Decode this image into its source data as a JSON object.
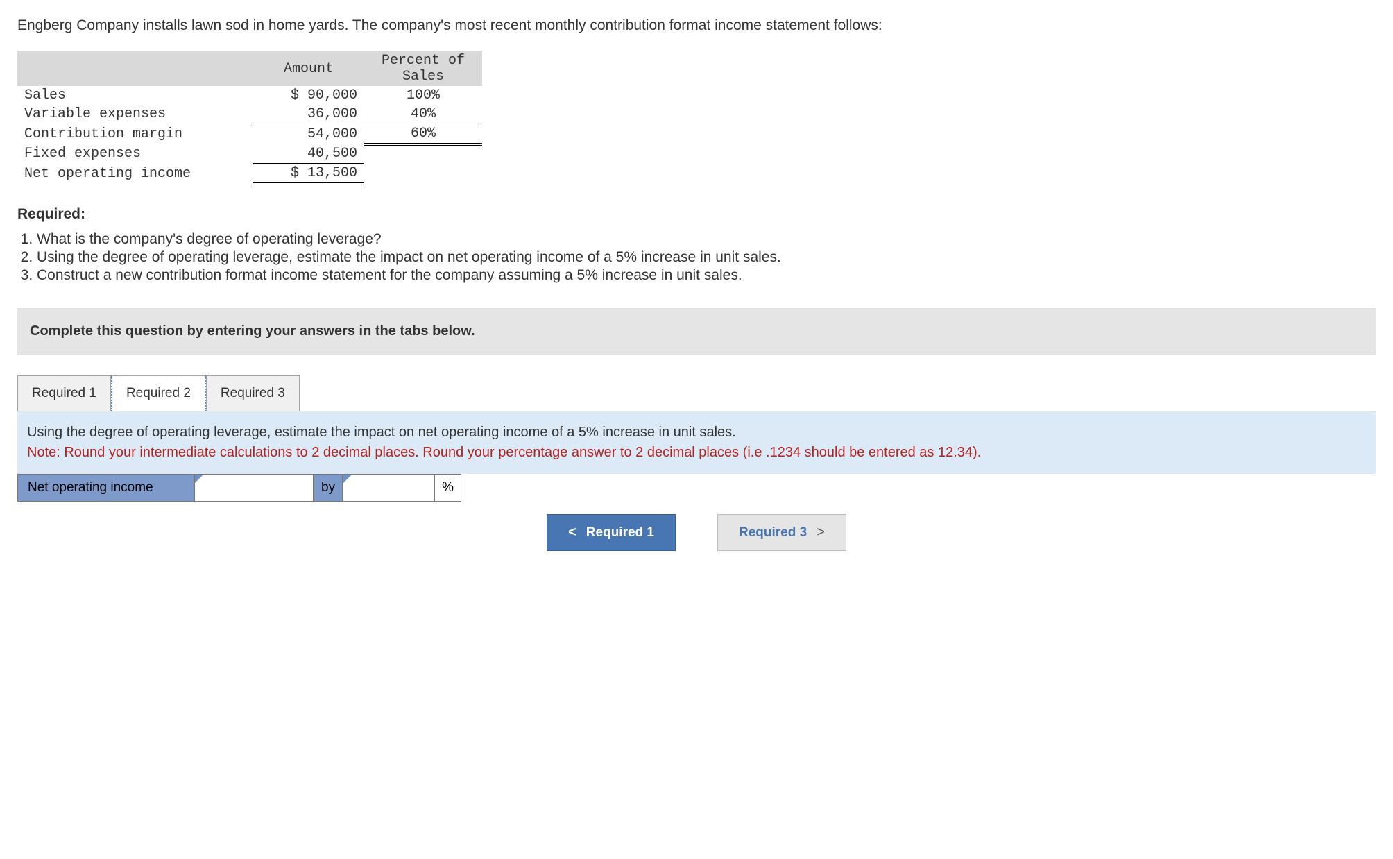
{
  "intro": "Engberg Company installs lawn sod in home yards. The company's most recent monthly contribution format income statement follows:",
  "income_table": {
    "header_amount": "Amount",
    "header_percent": "Percent of Sales",
    "rows": [
      {
        "label": "Sales",
        "amount": "$ 90,000",
        "percent": "100%",
        "amt_border": "",
        "pct_border": ""
      },
      {
        "label": "Variable expenses",
        "amount": "36,000",
        "percent": "40%",
        "amt_border": "underline-single",
        "pct_border": "underline-single"
      },
      {
        "label": "Contribution margin",
        "amount": "54,000",
        "percent": "60%",
        "amt_border": "",
        "pct_border": "underline-double"
      },
      {
        "label": "Fixed expenses",
        "amount": "40,500",
        "percent": "",
        "amt_border": "underline-single",
        "pct_border": ""
      },
      {
        "label": "Net operating income",
        "amount": "$ 13,500",
        "percent": "",
        "amt_border": "underline-double",
        "pct_border": ""
      }
    ]
  },
  "required_heading": "Required:",
  "required_items": [
    "What is the company's degree of operating leverage?",
    "Using the degree of operating leverage, estimate the impact on net operating income of a 5% increase in unit sales.",
    "Construct a new contribution format income statement for the company assuming a 5% increase in unit sales."
  ],
  "instruction_bar": "Complete this question by entering your answers in the tabs below.",
  "tabs": {
    "t1": "Required 1",
    "t2": "Required 2",
    "t3": "Required 3"
  },
  "tab_content": {
    "main": "Using the degree of operating leverage, estimate the impact on net operating income of a 5% increase in unit sales.",
    "note": "Note: Round your intermediate calculations to 2 decimal places. Round your percentage answer to 2 decimal places (i.e .1234 should be entered as 12.34)."
  },
  "answer": {
    "label": "Net operating income",
    "by": "by",
    "percent": "%"
  },
  "nav": {
    "prev_chev": "<",
    "prev": "Required 1",
    "next": "Required 3",
    "next_chev": ">"
  },
  "colors": {
    "header_gray": "#d9d9d9",
    "instruction_gray": "#e5e5e5",
    "tab_active_border": "#5b8ac6",
    "content_blue": "#dce9f6",
    "note_red": "#b02420",
    "cell_blue": "#7d9acb",
    "nav_blue": "#4876b3"
  }
}
